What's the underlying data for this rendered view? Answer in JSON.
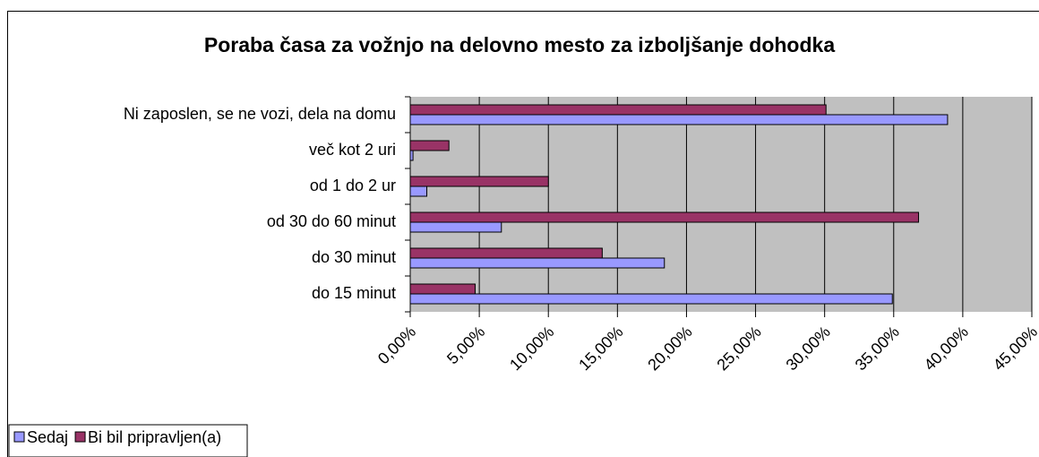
{
  "chart_data": {
    "type": "hbar",
    "title": "Poraba časa za vožnjo na delovno mesto za izboljšanje dohodka",
    "categories": [
      "Ni zaposlen, se ne vozi, dela na domu",
      "več kot 2 uri",
      "od 1 do 2 ur",
      "od 30 do 60 minut",
      "do 30 minut",
      "do 15 minut"
    ],
    "series": [
      {
        "name": "Sedaj",
        "color": "#9999ff",
        "values": [
          38.9,
          0.2,
          1.2,
          6.6,
          18.4,
          34.9
        ]
      },
      {
        "name": "Bi bil pripravljen(a)",
        "color": "#993366",
        "values": [
          30.1,
          2.8,
          10.0,
          36.8,
          13.9,
          4.7
        ]
      }
    ],
    "xlim": [
      0,
      45
    ],
    "xticks": [
      {
        "value": 0,
        "label": "0,00%"
      },
      {
        "value": 5,
        "label": "5,00%"
      },
      {
        "value": 10,
        "label": "10,00%"
      },
      {
        "value": 15,
        "label": "15,00%"
      },
      {
        "value": 20,
        "label": "20,00%"
      },
      {
        "value": 25,
        "label": "25,00%"
      },
      {
        "value": 30,
        "label": "30,00%"
      },
      {
        "value": 35,
        "label": "35,00%"
      },
      {
        "value": 40,
        "label": "40,00%"
      },
      {
        "value": 45,
        "label": "45,00%"
      }
    ],
    "grid": true,
    "legend": "bottom-left"
  }
}
